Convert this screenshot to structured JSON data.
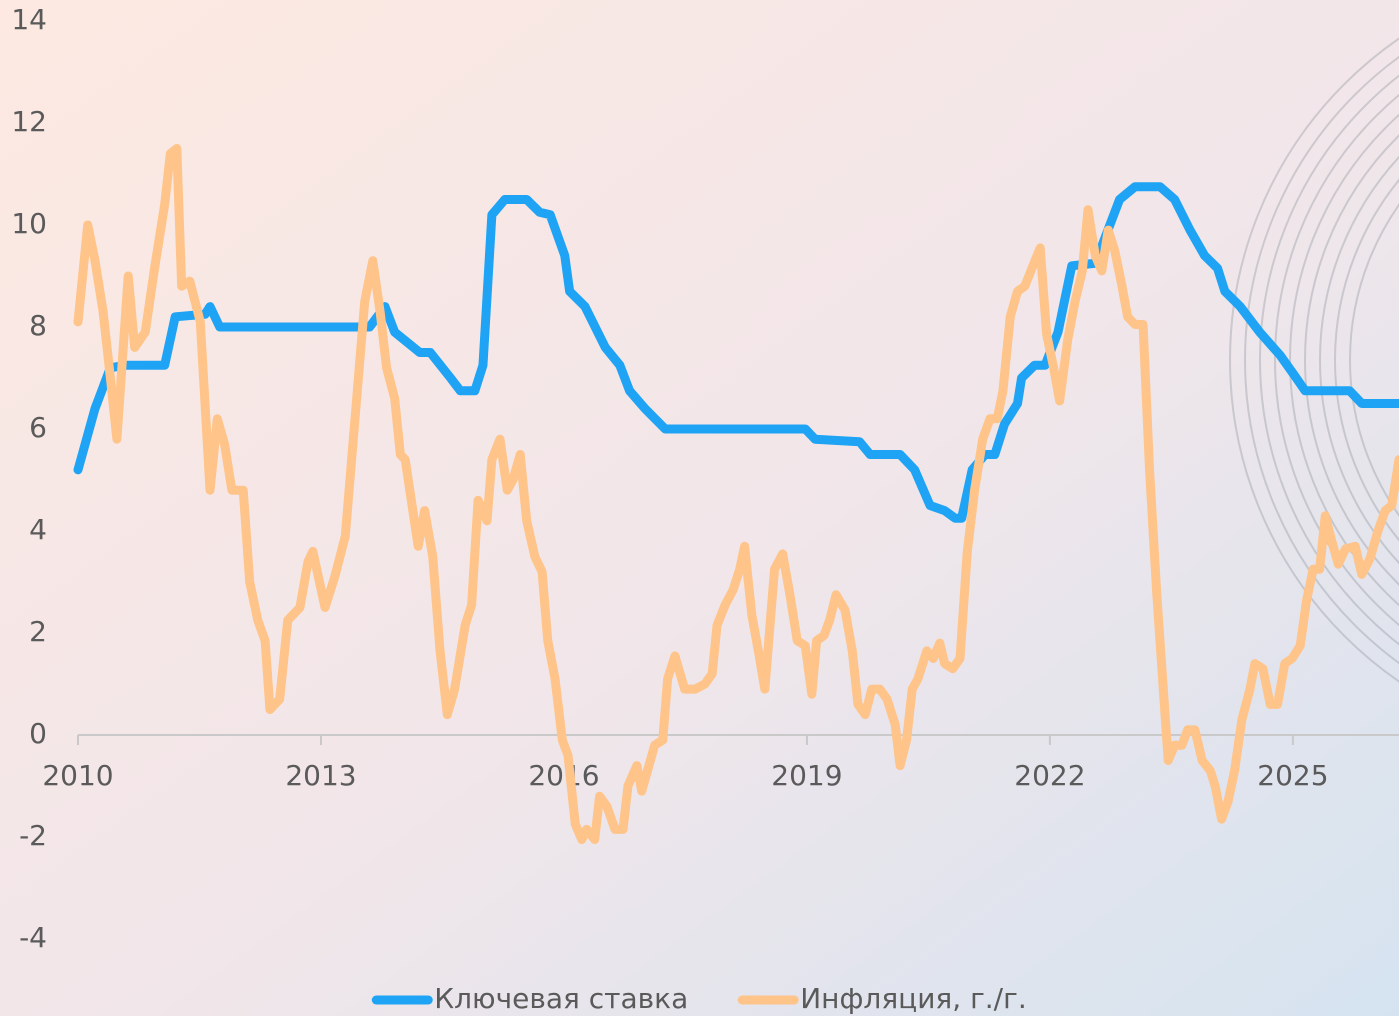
{
  "chart_data": {
    "type": "line",
    "xlim": [
      2010,
      2026.31
    ],
    "xticks": [
      2010,
      2013,
      2016,
      2019,
      2022,
      2025
    ],
    "ylim": [
      -4,
      14
    ],
    "yticks": [
      -4,
      -2,
      0,
      2,
      4,
      6,
      8,
      10,
      12,
      14
    ],
    "legend": "bottom",
    "series": [
      {
        "name": "Ключевая ставка",
        "color": "#1fa3f5",
        "x": [
          2010.0,
          2010.21,
          2010.4,
          2010.58,
          2011.07,
          2011.2,
          2011.57,
          2011.63,
          2011.75,
          2013.6,
          2013.79,
          2013.91,
          2014.22,
          2014.35,
          2014.6,
          2014.72,
          2014.9,
          2015.0,
          2015.11,
          2015.27,
          2015.54,
          2015.7,
          2015.83,
          2016.01,
          2016.07,
          2016.26,
          2016.51,
          2016.69,
          2016.81,
          2017.0,
          2017.25,
          2018.98,
          2019.1,
          2019.65,
          2019.78,
          2020.15,
          2020.33,
          2020.52,
          2020.7,
          2020.83,
          2020.91,
          2021.04,
          2021.2,
          2021.32,
          2021.44,
          2021.6,
          2021.65,
          2021.81,
          2021.94,
          2022.1,
          2022.27,
          2022.56,
          2022.74,
          2022.86,
          2023.05,
          2023.36,
          2023.54,
          2023.73,
          2023.91,
          2024.07,
          2024.16,
          2024.35,
          2024.59,
          2024.84,
          2025.02,
          2025.15,
          2025.7,
          2025.85,
          2026.31
        ],
        "values": [
          5.2,
          6.4,
          7.2,
          7.25,
          7.25,
          8.2,
          8.25,
          8.4,
          8.0,
          8.0,
          8.4,
          7.9,
          7.5,
          7.5,
          7.0,
          6.75,
          6.75,
          7.25,
          10.2,
          10.5,
          10.5,
          10.25,
          10.2,
          9.4,
          8.7,
          8.4,
          7.6,
          7.25,
          6.75,
          6.4,
          6.0,
          6.0,
          5.8,
          5.75,
          5.5,
          5.5,
          5.2,
          4.5,
          4.4,
          4.25,
          4.25,
          5.2,
          5.5,
          5.5,
          6.1,
          6.5,
          7.0,
          7.25,
          7.25,
          7.9,
          9.2,
          9.25,
          10.0,
          10.5,
          10.75,
          10.75,
          10.5,
          9.9,
          9.4,
          9.15,
          8.7,
          8.4,
          7.9,
          7.45,
          7.05,
          6.75,
          6.75,
          6.5,
          6.5
        ]
      },
      {
        "name": "Инфляция, г./г.",
        "color": "#ffc48a",
        "x": [
          2010.0,
          2010.12,
          2010.21,
          2010.31,
          2010.4,
          2010.48,
          2010.62,
          2010.7,
          2010.83,
          2010.95,
          2011.07,
          2011.14,
          2011.22,
          2011.28,
          2011.38,
          2011.51,
          2011.63,
          2011.72,
          2011.81,
          2011.9,
          2012.04,
          2012.12,
          2012.22,
          2012.31,
          2012.37,
          2012.49,
          2012.59,
          2012.74,
          2012.84,
          2012.9,
          2013.05,
          2013.17,
          2013.3,
          2013.42,
          2013.54,
          2013.64,
          2013.73,
          2013.81,
          2013.91,
          2013.98,
          2014.04,
          2014.2,
          2014.28,
          2014.38,
          2014.47,
          2014.56,
          2014.65,
          2014.78,
          2014.86,
          2014.94,
          2015.05,
          2015.11,
          2015.21,
          2015.3,
          2015.37,
          2015.46,
          2015.54,
          2015.64,
          2015.73,
          2015.8,
          2015.89,
          2015.98,
          2016.05,
          2016.14,
          2016.22,
          2016.28,
          2016.38,
          2016.44,
          2016.53,
          2016.63,
          2016.73,
          2016.79,
          2016.9,
          2016.96,
          2017.12,
          2017.22,
          2017.28,
          2017.37,
          2017.49,
          2017.62,
          2017.74,
          2017.83,
          2017.89,
          2017.99,
          2018.09,
          2018.17,
          2018.23,
          2018.32,
          2018.4,
          2018.48,
          2018.6,
          2018.7,
          2018.79,
          2018.88,
          2018.98,
          2019.06,
          2019.12,
          2019.21,
          2019.28,
          2019.36,
          2019.47,
          2019.56,
          2019.63,
          2019.72,
          2019.8,
          2019.9,
          2019.99,
          2020.09,
          2020.15,
          2020.23,
          2020.3,
          2020.37,
          2020.48,
          2020.56,
          2020.64,
          2020.7,
          2020.8,
          2020.89,
          2020.98,
          2021.07,
          2021.17,
          2021.26,
          2021.35,
          2021.42,
          2021.51,
          2021.6,
          2021.69,
          2021.79,
          2021.88,
          2021.96,
          2022.04,
          2022.12,
          2022.22,
          2022.31,
          2022.4,
          2022.47,
          2022.56,
          2022.64,
          2022.72,
          2022.8,
          2022.89,
          2022.96,
          2023.05,
          2023.15,
          2023.23,
          2023.32,
          2023.4,
          2023.46,
          2023.54,
          2023.63,
          2023.7,
          2023.79,
          2023.88,
          2023.98,
          2024.04,
          2024.12,
          2024.2,
          2024.28,
          2024.37,
          2024.47,
          2024.53,
          2024.63,
          2024.72,
          2024.81,
          2024.9,
          2024.99,
          2025.09,
          2025.17,
          2025.25,
          2025.33,
          2025.4,
          2025.48,
          2025.56,
          2025.65,
          2025.77,
          2025.85,
          2025.95,
          2026.05,
          2026.14,
          2026.22,
          2026.31
        ],
        "values": [
          8.1,
          10.0,
          9.3,
          8.3,
          7.0,
          5.8,
          9.0,
          7.6,
          7.9,
          9.2,
          10.4,
          11.4,
          11.5,
          8.8,
          8.9,
          8.1,
          4.8,
          6.2,
          5.7,
          4.8,
          4.8,
          3.0,
          2.25,
          1.85,
          0.5,
          0.7,
          2.25,
          2.5,
          3.4,
          3.6,
          2.5,
          3.1,
          3.9,
          6.2,
          8.5,
          9.3,
          8.3,
          7.2,
          6.6,
          5.5,
          5.4,
          3.7,
          4.4,
          3.5,
          1.65,
          0.4,
          0.9,
          2.15,
          2.55,
          4.6,
          4.2,
          5.4,
          5.8,
          4.8,
          5.0,
          5.5,
          4.2,
          3.5,
          3.2,
          1.85,
          1.1,
          -0.1,
          -0.4,
          -1.75,
          -2.05,
          -1.85,
          -2.05,
          -1.2,
          -1.4,
          -1.85,
          -1.85,
          -1.0,
          -0.6,
          -1.1,
          -0.2,
          -0.1,
          1.1,
          1.55,
          0.9,
          0.9,
          1.0,
          1.2,
          2.15,
          2.55,
          2.85,
          3.25,
          3.7,
          2.35,
          1.65,
          0.9,
          3.25,
          3.55,
          2.75,
          1.85,
          1.75,
          0.8,
          1.85,
          1.95,
          2.25,
          2.75,
          2.45,
          1.65,
          0.6,
          0.4,
          0.9,
          0.9,
          0.7,
          0.2,
          -0.6,
          -0.1,
          0.9,
          1.1,
          1.65,
          1.5,
          1.8,
          1.4,
          1.3,
          1.5,
          3.6,
          4.8,
          5.8,
          6.2,
          6.2,
          6.75,
          8.2,
          8.7,
          8.8,
          9.2,
          9.55,
          7.85,
          7.25,
          6.55,
          7.75,
          8.5,
          9.1,
          10.3,
          9.4,
          9.1,
          9.9,
          9.5,
          8.8,
          8.2,
          8.05,
          8.05,
          5.2,
          2.75,
          0.9,
          -0.5,
          -0.2,
          -0.2,
          0.1,
          0.1,
          -0.5,
          -0.7,
          -1.0,
          -1.65,
          -1.3,
          -0.7,
          0.3,
          0.9,
          1.4,
          1.3,
          0.6,
          0.6,
          1.4,
          1.5,
          1.75,
          2.65,
          3.25,
          3.25,
          4.3,
          3.8,
          3.35,
          3.65,
          3.7,
          3.15,
          3.45,
          4.0,
          4.4,
          4.5,
          5.4
        ]
      }
    ]
  }
}
